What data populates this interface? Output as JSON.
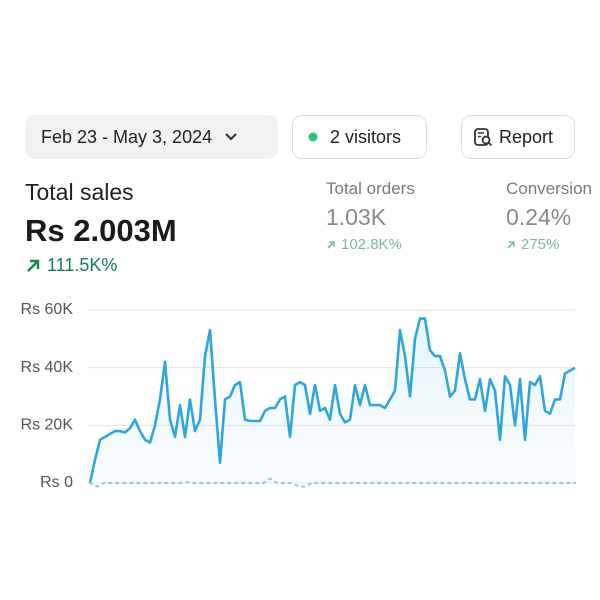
{
  "toolbar": {
    "date_range": "Feb 23 - May 3, 2024",
    "visitors": "2 visitors",
    "report": "Report"
  },
  "metrics": [
    {
      "label": "Total sales",
      "value": "Rs 2.003M",
      "change": "111.5K%"
    },
    {
      "label": "Total orders",
      "value": "1.03K",
      "change": "102.8K%"
    },
    {
      "label": "Conversion",
      "value": "0.24%",
      "change": "275%"
    }
  ],
  "chart_data": {
    "type": "line",
    "ylim": [
      0,
      60000
    ],
    "yticks": [
      {
        "value": 0,
        "label": "Rs 0"
      },
      {
        "value": 20000,
        "label": "Rs 20K"
      },
      {
        "value": 40000,
        "label": "Rs 40K"
      },
      {
        "value": 60000,
        "label": "Rs 60K"
      }
    ],
    "grid": true,
    "series": [
      {
        "color": "#2fa6d8",
        "values": [
          0,
          8000,
          15000,
          16000,
          17000,
          18000,
          18000,
          17500,
          19000,
          22000,
          18000,
          15000,
          14000,
          20000,
          29000,
          42000,
          22000,
          16000,
          27000,
          16000,
          29000,
          18000,
          22000,
          44000,
          53000,
          29000,
          7000,
          29000,
          30000,
          34000,
          35000,
          22000,
          21500,
          21500,
          21500,
          25000,
          26000,
          26000,
          29000,
          30000,
          16000,
          34000,
          35000,
          34000,
          24000,
          34000,
          25000,
          26000,
          22000,
          34000,
          24000,
          21000,
          22000,
          34000,
          27000,
          34000,
          27000,
          27000,
          27000,
          26000,
          29000,
          32000,
          53000,
          44000,
          30000,
          50000,
          57000,
          57000,
          46000,
          44000,
          44000,
          39000,
          30000,
          32000,
          45000,
          36000,
          29000,
          29000,
          36000,
          25000,
          36000,
          32000,
          15000,
          37000,
          34000,
          20000,
          36000,
          15000,
          35000,
          34000,
          37000,
          25000,
          24000,
          29000,
          29000,
          38000,
          39000,
          40000
        ]
      },
      {
        "color": "#8ccbe6",
        "values": [
          0,
          -1200,
          0,
          0,
          0,
          0,
          0,
          0,
          0,
          0,
          0,
          0,
          0,
          0,
          200,
          0,
          0,
          0,
          0,
          0,
          0,
          0,
          0,
          0,
          0,
          0,
          1500,
          0,
          0,
          0,
          -1000,
          -1300,
          0,
          0,
          0,
          0,
          0,
          0,
          0,
          0,
          0,
          0,
          0,
          0,
          0,
          0,
          0,
          0,
          0,
          0,
          0,
          0,
          0,
          0,
          0,
          0,
          0,
          0,
          0,
          0,
          0,
          0,
          0,
          0,
          0,
          0,
          0,
          0,
          0,
          0,
          0
        ]
      }
    ]
  }
}
